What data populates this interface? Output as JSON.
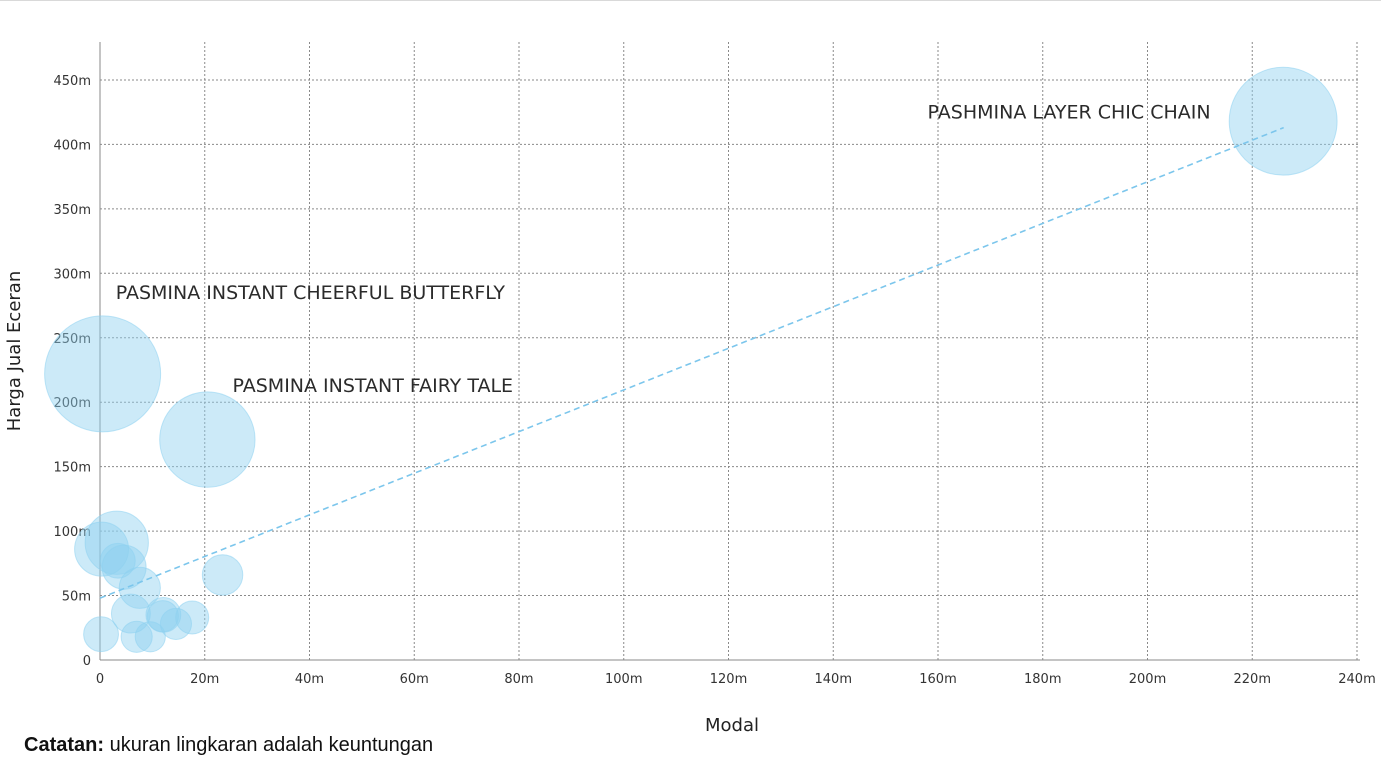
{
  "chart_data": {
    "type": "scatter",
    "subtype": "bubble",
    "xlabel": "Modal",
    "ylabel": "Harga Jual Eceran",
    "xlim": [
      0,
      240
    ],
    "ylim": [
      0,
      480
    ],
    "x_ticks": [
      0,
      20,
      40,
      60,
      80,
      100,
      120,
      140,
      160,
      180,
      200,
      220,
      240
    ],
    "x_tick_labels": [
      "0",
      "20m",
      "40m",
      "60m",
      "80m",
      "100m",
      "120m",
      "140m",
      "160m",
      "180m",
      "200m",
      "220m",
      "240m"
    ],
    "y_ticks": [
      0,
      50,
      100,
      150,
      200,
      250,
      300,
      350,
      400,
      450
    ],
    "y_tick_labels": [
      "0",
      "50m",
      "100m",
      "150m",
      "200m",
      "250m",
      "300m",
      "350m",
      "400m",
      "450m"
    ],
    "grid": true,
    "bubble_color": "#8ed1f0",
    "trendline_color": "#7cc6ec",
    "size_meaning": "keuntungan",
    "points": [
      {
        "x": 0.5,
        "y": 222,
        "size": 222
      },
      {
        "x": 20.5,
        "y": 171,
        "size": 150
      },
      {
        "x": 225.9,
        "y": 418,
        "size": 192
      },
      {
        "x": 3.2,
        "y": 91,
        "size": 66
      },
      {
        "x": 0.3,
        "y": 86,
        "size": 48
      },
      {
        "x": 4.6,
        "y": 72,
        "size": 32
      },
      {
        "x": 3.4,
        "y": 77,
        "size": 20
      },
      {
        "x": 7.6,
        "y": 56,
        "size": 28
      },
      {
        "x": 23.4,
        "y": 66,
        "size": 27
      },
      {
        "x": 5.9,
        "y": 36,
        "size": 25
      },
      {
        "x": 12.1,
        "y": 35,
        "size": 20
      },
      {
        "x": 12.0,
        "y": 34,
        "size": 16
      },
      {
        "x": 17.6,
        "y": 33,
        "size": 18
      },
      {
        "x": 14.5,
        "y": 28,
        "size": 16
      },
      {
        "x": 0.2,
        "y": 20,
        "size": 20
      },
      {
        "x": 7.0,
        "y": 18,
        "size": 16
      },
      {
        "x": 9.6,
        "y": 18,
        "size": 15
      }
    ],
    "trendline": {
      "from": {
        "x": 0,
        "y": 48
      },
      "to": {
        "x": 226,
        "y": 413
      }
    },
    "annotations": [
      {
        "text": "PASHMINA LAYER CHIC CHAIN",
        "x": 158,
        "y": 420
      },
      {
        "text": "PASMINA INSTANT CHEERFUL BUTTERFLY",
        "x": 3,
        "y": 280
      },
      {
        "text": "PASMINA INSTANT FAIRY TALE",
        "x": 25.3,
        "y": 208
      }
    ]
  },
  "note": {
    "bold": "Catatan:",
    "text": " ukuran lingkaran adalah keuntungan"
  }
}
